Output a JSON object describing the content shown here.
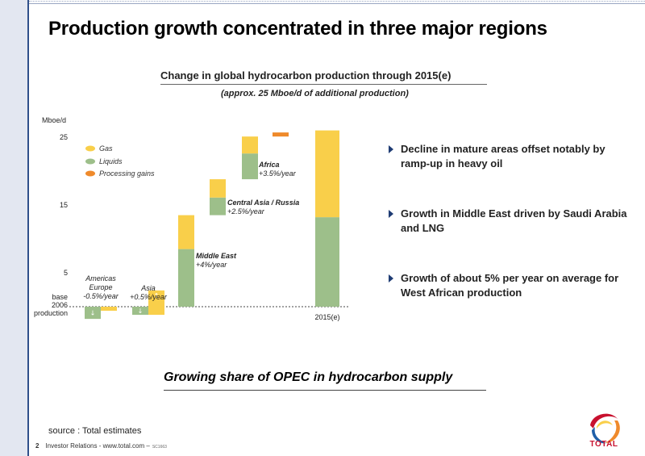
{
  "page": {
    "title": "Production growth concentrated in three major regions",
    "subtitle": "Change in global hydrocarbon production through 2015(e)",
    "subnote": "(approx. 25 Mboe/d of additional production)",
    "bottom_message": "Growing share of OPEC in hydrocarbon supply",
    "source": "source : Total estimates",
    "footer": {
      "page_number": "2",
      "text": "Investor Relations - www.total.com –",
      "code": "SC1663"
    },
    "logo_text": "TOTAL"
  },
  "bullets": [
    "Decline in mature areas offset notably by ramp-up in heavy oil",
    "Growth in Middle East driven by Saudi Arabia and LNG",
    "Growth of about 5% per year on average for West African production"
  ],
  "colors": {
    "gas": "#f9cf4a",
    "liquids": "#9dbf8a",
    "processing": "#ef8a2b",
    "accent": "#1f3c74"
  },
  "chart_data": {
    "type": "bar",
    "subtype": "waterfall",
    "ylabel": "Mboe/d",
    "yticks": [
      5,
      15,
      25
    ],
    "ylim": [
      -3,
      26
    ],
    "base_label": [
      "base",
      "2006",
      "production"
    ],
    "legend": [
      {
        "key": "gas",
        "label": "Gas"
      },
      {
        "key": "liquids",
        "label": "Liquids"
      },
      {
        "key": "processing",
        "label": "Processing gains"
      }
    ],
    "steps": [
      {
        "category": [
          "Americas",
          "Europe"
        ],
        "growth": "-0.5%/year",
        "liquids": -1.8,
        "gas": -0.6,
        "label_style": "italic"
      },
      {
        "category": [
          "Asia"
        ],
        "growth": "+0.5%/year",
        "liquids": -1.2,
        "gas": 2.4,
        "label_style": "italic"
      },
      {
        "category": [
          "Middle East"
        ],
        "growth": "+4%/year",
        "liquids": 8.5,
        "gas": 5.0,
        "label_style": "bold"
      },
      {
        "category": [
          "Central Asia / Russia"
        ],
        "growth": "+2.5%/year",
        "liquids": 2.6,
        "gas": 2.7,
        "label_style": "bold"
      },
      {
        "category": [
          "Africa"
        ],
        "growth": "+3.5%/year",
        "liquids": 3.8,
        "gas": 2.5,
        "label_style": "bold"
      },
      {
        "category": [],
        "growth": "",
        "processing": 0.6
      }
    ],
    "total": {
      "category": "2015(e)",
      "liquids": 13.2,
      "gas": 12.8
    }
  }
}
